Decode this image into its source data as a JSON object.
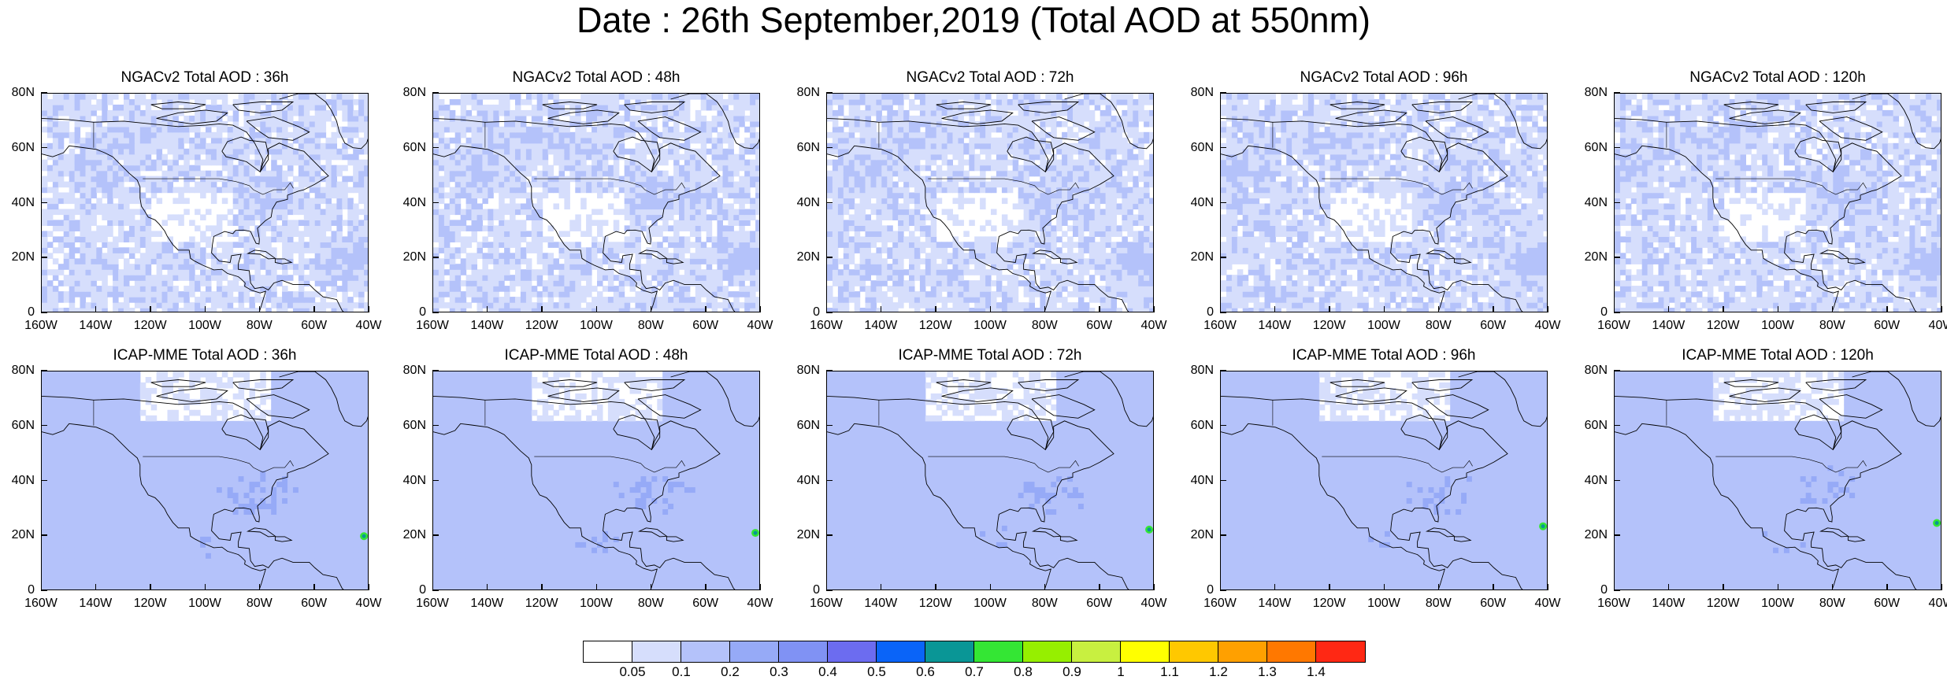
{
  "title": "Date : 26th September,2019 (Total AOD at 550nm)",
  "panels": [
    {
      "title": "NGACv2 Total AOD : 36h",
      "model": "NGACv2",
      "lead": "36h"
    },
    {
      "title": "NGACv2 Total AOD : 48h",
      "model": "NGACv2",
      "lead": "48h"
    },
    {
      "title": "NGACv2 Total AOD : 72h",
      "model": "NGACv2",
      "lead": "72h"
    },
    {
      "title": "NGACv2 Total AOD : 96h",
      "model": "NGACv2",
      "lead": "96h"
    },
    {
      "title": "NGACv2 Total AOD : 120h",
      "model": "NGACv2",
      "lead": "120h"
    },
    {
      "title": "ICAP-MME Total AOD : 36h",
      "model": "ICAP-MME",
      "lead": "36h"
    },
    {
      "title": "ICAP-MME Total AOD : 48h",
      "model": "ICAP-MME",
      "lead": "48h"
    },
    {
      "title": "ICAP-MME Total AOD : 72h",
      "model": "ICAP-MME",
      "lead": "72h"
    },
    {
      "title": "ICAP-MME Total AOD : 96h",
      "model": "ICAP-MME",
      "lead": "96h"
    },
    {
      "title": "ICAP-MME Total AOD : 120h",
      "model": "ICAP-MME",
      "lead": "120h"
    }
  ],
  "map_extent": {
    "lon": [
      -160,
      -40
    ],
    "lat": [
      0,
      80
    ]
  },
  "x_ticks": [
    "160W",
    "140W",
    "120W",
    "100W",
    "80W",
    "60W",
    "40W"
  ],
  "y_ticks": [
    "0",
    "20N",
    "40N",
    "60N",
    "80N"
  ],
  "colorbar": {
    "labels": [
      "0.05",
      "0.1",
      "0.2",
      "0.3",
      "0.4",
      "0.5",
      "0.6",
      "0.7",
      "0.8",
      "0.9",
      "1",
      "1.1",
      "1.2",
      "1.3",
      "1.4"
    ],
    "colors": [
      "#ffffff",
      "#d6defc",
      "#b4c2fa",
      "#96aaf7",
      "#8092f4",
      "#6c6cf0",
      "#0a64f8",
      "#0a9696",
      "#34e634",
      "#96ef00",
      "#c8f040",
      "#ffff00",
      "#ffc800",
      "#ffa000",
      "#ff7800",
      "#ff2814"
    ]
  }
}
